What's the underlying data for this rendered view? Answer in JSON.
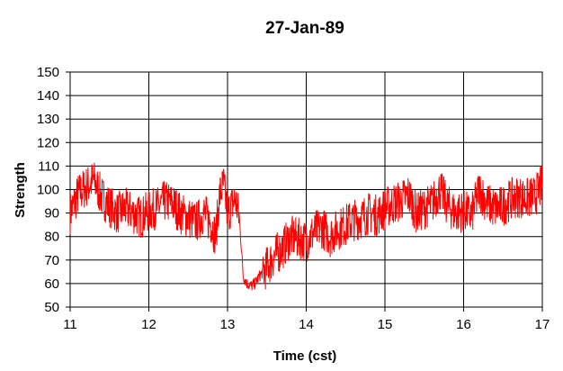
{
  "chart_data": {
    "type": "line",
    "title": "27-Jan-89",
    "xlabel": "Time (cst)",
    "ylabel": "Strength",
    "xlim": [
      11,
      17
    ],
    "ylim": [
      50,
      150
    ],
    "x_ticks": [
      "11",
      "12",
      "13",
      "14",
      "15",
      "16",
      "17"
    ],
    "y_ticks": [
      "50",
      "60",
      "70",
      "80",
      "90",
      "100",
      "110",
      "120",
      "130",
      "140",
      "150"
    ],
    "grid": true,
    "legend": "none",
    "series": [
      {
        "color": "#ff0000",
        "x": [
          11.0,
          11.1,
          11.2,
          11.3,
          11.4,
          11.5,
          11.6,
          11.7,
          11.8,
          11.9,
          12.0,
          12.1,
          12.2,
          12.3,
          12.4,
          12.5,
          12.6,
          12.7,
          12.8,
          12.85,
          12.9,
          12.95,
          13.0,
          13.1,
          13.15,
          13.2,
          13.25,
          13.3,
          13.35,
          13.4,
          13.5,
          13.6,
          13.7,
          13.8,
          13.9,
          14.0,
          14.1,
          14.2,
          14.3,
          14.4,
          14.5,
          14.6,
          14.7,
          14.8,
          14.9,
          15.0,
          15.1,
          15.2,
          15.3,
          15.4,
          15.5,
          15.6,
          15.7,
          15.8,
          15.9,
          16.0,
          16.1,
          16.2,
          16.3,
          16.4,
          16.5,
          16.6,
          16.7,
          16.8,
          16.9,
          17.0
        ],
        "y": [
          90,
          98,
          101,
          104,
          97,
          93,
          90,
          92,
          90,
          88,
          91,
          92,
          95,
          94,
          90,
          88,
          86,
          90,
          85,
          80,
          98,
          102,
          90,
          96,
          88,
          63,
          60,
          59,
          60,
          63,
          67,
          72,
          75,
          80,
          79,
          78,
          82,
          84,
          80,
          83,
          85,
          87,
          88,
          90,
          89,
          92,
          94,
          95,
          98,
          90,
          92,
          94,
          100,
          93,
          90,
          91,
          89,
          100,
          94,
          92,
          93,
          96,
          97,
          96,
          97,
          102
        ]
      }
    ]
  }
}
